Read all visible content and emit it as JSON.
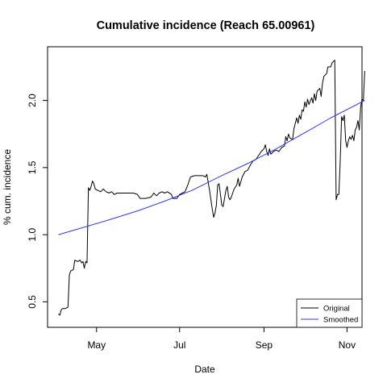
{
  "chart_data": {
    "type": "line",
    "title": "Cumulative incidence (Reach 65.00961)",
    "xlabel": "Date",
    "ylabel": "% cum. incidence",
    "x_ticks": [
      {
        "label": "May",
        "date": "2020-05-01"
      },
      {
        "label": "Jul",
        "date": "2020-07-01"
      },
      {
        "label": "Sep",
        "date": "2020-09-01"
      },
      {
        "label": "Nov",
        "date": "2020-11-01"
      }
    ],
    "y_ticks": [
      0.5,
      1.0,
      1.5,
      2.0
    ],
    "y_tick_labels": [
      "0.5",
      "1.0",
      "1.5",
      "2.0"
    ],
    "xlim": [
      "2020-03-26",
      "2020-11-12"
    ],
    "ylim": [
      0.31,
      2.4
    ],
    "grid": false,
    "legend": {
      "position": "bottom-right",
      "entries": [
        {
          "label": "Original",
          "color": "#000000"
        },
        {
          "label": "Smoothed",
          "color": "#3333ff"
        }
      ]
    },
    "series": [
      {
        "name": "Original",
        "color": "#000000",
        "points": [
          [
            "2020-04-03",
            0.41
          ],
          [
            "2020-04-04",
            0.4
          ],
          [
            "2020-04-05",
            0.44
          ],
          [
            "2020-04-06",
            0.45
          ],
          [
            "2020-04-08",
            0.45
          ],
          [
            "2020-04-10",
            0.46
          ],
          [
            "2020-04-11",
            0.7
          ],
          [
            "2020-04-12",
            0.73
          ],
          [
            "2020-04-14",
            0.74
          ],
          [
            "2020-04-15",
            0.81
          ],
          [
            "2020-04-17",
            0.8
          ],
          [
            "2020-04-19",
            0.81
          ],
          [
            "2020-04-20",
            0.79
          ],
          [
            "2020-04-21",
            0.8
          ],
          [
            "2020-04-22",
            0.75
          ],
          [
            "2020-04-23",
            0.8
          ],
          [
            "2020-04-24",
            0.79
          ],
          [
            "2020-04-25",
            1.35
          ],
          [
            "2020-04-26",
            1.33
          ],
          [
            "2020-04-27",
            1.36
          ],
          [
            "2020-04-28",
            1.4
          ],
          [
            "2020-04-29",
            1.38
          ],
          [
            "2020-04-30",
            1.34
          ],
          [
            "2020-05-02",
            1.33
          ],
          [
            "2020-05-04",
            1.32
          ],
          [
            "2020-05-06",
            1.34
          ],
          [
            "2020-05-08",
            1.32
          ],
          [
            "2020-05-10",
            1.31
          ],
          [
            "2020-05-12",
            1.32
          ],
          [
            "2020-05-14",
            1.3
          ],
          [
            "2020-05-16",
            1.31
          ],
          [
            "2020-05-19",
            1.31
          ],
          [
            "2020-05-22",
            1.31
          ],
          [
            "2020-05-25",
            1.31
          ],
          [
            "2020-05-28",
            1.31
          ],
          [
            "2020-05-31",
            1.3
          ],
          [
            "2020-06-02",
            1.27
          ],
          [
            "2020-06-06",
            1.27
          ],
          [
            "2020-06-10",
            1.28
          ],
          [
            "2020-06-12",
            1.31
          ],
          [
            "2020-06-14",
            1.29
          ],
          [
            "2020-06-16",
            1.31
          ],
          [
            "2020-06-18",
            1.32
          ],
          [
            "2020-06-20",
            1.31
          ],
          [
            "2020-06-22",
            1.32
          ],
          [
            "2020-06-25",
            1.3
          ],
          [
            "2020-06-26",
            1.27
          ],
          [
            "2020-06-29",
            1.27
          ],
          [
            "2020-07-01",
            1.3
          ],
          [
            "2020-07-03",
            1.31
          ],
          [
            "2020-07-05",
            1.32
          ],
          [
            "2020-07-07",
            1.37
          ],
          [
            "2020-07-09",
            1.43
          ],
          [
            "2020-07-12",
            1.44
          ],
          [
            "2020-07-15",
            1.44
          ],
          [
            "2020-07-18",
            1.44
          ],
          [
            "2020-07-20",
            1.43
          ],
          [
            "2020-07-21",
            1.45
          ],
          [
            "2020-07-22",
            1.39
          ],
          [
            "2020-07-23",
            1.33
          ],
          [
            "2020-07-24",
            1.26
          ],
          [
            "2020-07-25",
            1.19
          ],
          [
            "2020-07-26",
            1.13
          ],
          [
            "2020-07-27",
            1.16
          ],
          [
            "2020-07-28",
            1.22
          ],
          [
            "2020-07-29",
            1.37
          ],
          [
            "2020-07-30",
            1.38
          ],
          [
            "2020-07-31",
            1.3
          ],
          [
            "2020-08-01",
            1.22
          ],
          [
            "2020-08-02",
            1.21
          ],
          [
            "2020-08-03",
            1.27
          ],
          [
            "2020-08-04",
            1.33
          ],
          [
            "2020-08-05",
            1.36
          ],
          [
            "2020-08-06",
            1.28
          ],
          [
            "2020-08-07",
            1.26
          ],
          [
            "2020-08-08",
            1.28
          ],
          [
            "2020-08-10",
            1.34
          ],
          [
            "2020-08-12",
            1.37
          ],
          [
            "2020-08-13",
            1.42
          ],
          [
            "2020-08-14",
            1.36
          ],
          [
            "2020-08-16",
            1.43
          ],
          [
            "2020-08-18",
            1.47
          ],
          [
            "2020-08-20",
            1.48
          ],
          [
            "2020-08-22",
            1.52
          ],
          [
            "2020-08-24",
            1.55
          ],
          [
            "2020-08-26",
            1.56
          ],
          [
            "2020-08-28",
            1.59
          ],
          [
            "2020-08-30",
            1.62
          ],
          [
            "2020-09-01",
            1.64
          ],
          [
            "2020-09-02",
            1.67
          ],
          [
            "2020-09-03",
            1.62
          ],
          [
            "2020-09-04",
            1.59
          ],
          [
            "2020-09-05",
            1.64
          ],
          [
            "2020-09-06",
            1.6
          ],
          [
            "2020-09-08",
            1.62
          ],
          [
            "2020-09-10",
            1.63
          ],
          [
            "2020-09-12",
            1.62
          ],
          [
            "2020-09-14",
            1.65
          ],
          [
            "2020-09-16",
            1.66
          ],
          [
            "2020-09-17",
            1.73
          ],
          [
            "2020-09-18",
            1.7
          ],
          [
            "2020-09-19",
            1.75
          ],
          [
            "2020-09-20",
            1.72
          ],
          [
            "2020-09-22",
            1.71
          ],
          [
            "2020-09-23",
            1.79
          ],
          [
            "2020-09-25",
            1.87
          ],
          [
            "2020-09-26",
            1.83
          ],
          [
            "2020-09-27",
            1.89
          ],
          [
            "2020-09-28",
            1.86
          ],
          [
            "2020-09-29",
            1.93
          ],
          [
            "2020-09-30",
            1.92
          ],
          [
            "2020-10-01",
            1.99
          ],
          [
            "2020-10-02",
            1.95
          ],
          [
            "2020-10-03",
            2.01
          ],
          [
            "2020-10-04",
            1.97
          ],
          [
            "2020-10-06",
            2.02
          ],
          [
            "2020-10-07",
            1.98
          ],
          [
            "2020-10-08",
            2.05
          ],
          [
            "2020-10-09",
            2.0
          ],
          [
            "2020-10-10",
            2.07
          ],
          [
            "2020-10-12",
            2.09
          ],
          [
            "2020-10-13",
            2.03
          ],
          [
            "2020-10-14",
            2.13
          ],
          [
            "2020-10-15",
            2.18
          ],
          [
            "2020-10-17",
            2.2
          ],
          [
            "2020-10-18",
            2.25
          ],
          [
            "2020-10-20",
            2.25
          ],
          [
            "2020-10-21",
            2.28
          ],
          [
            "2020-10-22",
            2.29
          ],
          [
            "2020-10-23",
            2.3
          ],
          [
            "2020-10-24",
            1.26
          ],
          [
            "2020-10-25",
            1.3
          ],
          [
            "2020-10-26",
            1.3
          ],
          [
            "2020-10-27",
            1.55
          ],
          [
            "2020-10-28",
            1.88
          ],
          [
            "2020-10-29",
            1.85
          ],
          [
            "2020-10-30",
            1.89
          ],
          [
            "2020-10-31",
            1.7
          ],
          [
            "2020-11-01",
            1.65
          ],
          [
            "2020-11-02",
            1.7
          ],
          [
            "2020-11-03",
            1.73
          ],
          [
            "2020-11-04",
            1.71
          ],
          [
            "2020-11-05",
            1.74
          ],
          [
            "2020-11-06",
            1.7
          ],
          [
            "2020-11-07",
            1.78
          ],
          [
            "2020-11-08",
            1.8
          ],
          [
            "2020-11-09",
            1.85
          ],
          [
            "2020-11-10",
            1.78
          ],
          [
            "2020-11-11",
            1.95
          ],
          [
            "2020-11-12",
            2.01
          ],
          [
            "2020-11-13",
            2.0
          ],
          [
            "2020-11-14",
            2.22
          ]
        ]
      },
      {
        "name": "Smoothed",
        "color": "#3333ff",
        "points": [
          [
            "2020-04-03",
            1.0
          ],
          [
            "2020-04-20",
            1.05
          ],
          [
            "2020-05-10",
            1.11
          ],
          [
            "2020-06-01",
            1.18
          ],
          [
            "2020-06-20",
            1.25
          ],
          [
            "2020-07-10",
            1.33
          ],
          [
            "2020-08-01",
            1.44
          ],
          [
            "2020-08-20",
            1.53
          ],
          [
            "2020-09-10",
            1.64
          ],
          [
            "2020-10-01",
            1.76
          ],
          [
            "2020-10-20",
            1.87
          ],
          [
            "2020-11-14",
            2.0
          ]
        ]
      }
    ]
  }
}
